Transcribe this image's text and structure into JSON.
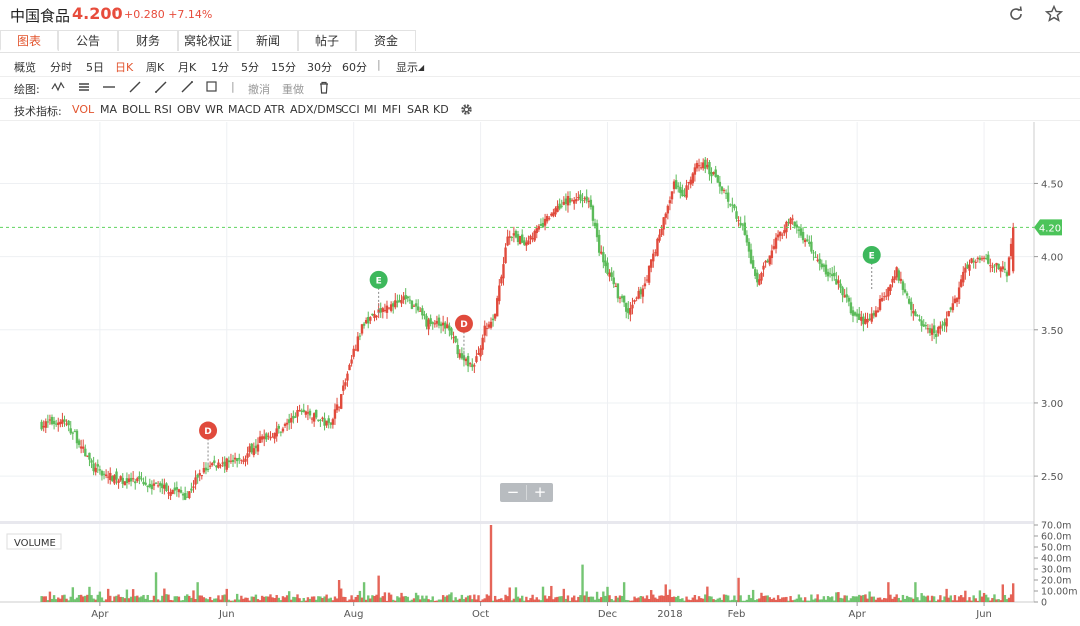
{
  "header": {
    "stock_name": "中国食品",
    "price": "4.200",
    "arrow": "↑",
    "change": "+0.280 +7.14%",
    "refresh_icon": "refresh-icon",
    "star_icon": "star-icon"
  },
  "tabs": [
    "图表",
    "公告",
    "财务",
    "窝轮权证",
    "新闻",
    "帖子",
    "资金"
  ],
  "period_bar": {
    "label": "概览",
    "items": [
      "分时",
      "5日",
      "日K",
      "周K",
      "月K",
      "1分",
      "5分",
      "15分",
      "30分",
      "60分"
    ],
    "selected": "日K",
    "display": "显示",
    "display_arrow": "◢"
  },
  "draw_bar": {
    "label": "绘图:",
    "undo": "撤消",
    "redo": "重做"
  },
  "indicator_bar": {
    "label": "技术指标:",
    "items": [
      "VOL",
      "MA",
      "BOLL",
      "RSI",
      "OBV",
      "WR",
      "MACD",
      "ATR",
      "ADX/DMS",
      "CCI",
      "MI",
      "MFI",
      "SAR",
      "KD"
    ],
    "selected": "VOL",
    "gear_icon": "gear-icon"
  },
  "zoom": {
    "minus": "−",
    "plus": "+"
  },
  "colors": {
    "up": "#e04a3c",
    "down": "#5cbb5a",
    "accent": "#e2552f"
  },
  "chart_data": {
    "type": "candlestick",
    "price_axis": {
      "ticks": [
        "2.50",
        "3.00",
        "3.50",
        "4.00",
        "4.50"
      ],
      "ylim": [
        2.2,
        4.92
      ]
    },
    "current_price": {
      "value": 4.2,
      "label": "4.20"
    },
    "x_labels": [
      {
        "label": "Apr",
        "d": 48
      },
      {
        "label": "Jun",
        "d": 109
      },
      {
        "label": "Aug",
        "d": 170
      },
      {
        "label": "Oct",
        "d": 231
      },
      {
        "label": "Dec",
        "d": 292
      },
      {
        "label": "2018",
        "d": 322
      },
      {
        "label": "Feb",
        "d": 354
      },
      {
        "label": "Apr",
        "d": 412
      },
      {
        "label": "Jun",
        "d": 473
      }
    ],
    "volume_axis": {
      "label": "VOLUME",
      "ticks": [
        "0",
        "10.00m",
        "20.0m",
        "30.0m",
        "40.0m",
        "50.0m",
        "60.0m",
        "70.0m"
      ],
      "max": 70
    },
    "markers": [
      {
        "label": "D",
        "d": 100,
        "price": 2.62,
        "color": "#e04a3c"
      },
      {
        "label": "E",
        "d": 182,
        "price": 3.65,
        "color": "#3db85c"
      },
      {
        "label": "D",
        "d": 223,
        "price": 3.35,
        "color": "#e04a3c"
      },
      {
        "label": "E",
        "d": 419,
        "price": 3.82,
        "color": "#3db85c"
      }
    ],
    "closes": [
      {
        "d": 20,
        "c": 2.85
      },
      {
        "d": 30,
        "c": 2.88
      },
      {
        "d": 36,
        "c": 2.78
      },
      {
        "d": 45,
        "c": 2.55
      },
      {
        "d": 55,
        "c": 2.48
      },
      {
        "d": 70,
        "c": 2.45
      },
      {
        "d": 85,
        "c": 2.4
      },
      {
        "d": 90,
        "c": 2.36
      },
      {
        "d": 95,
        "c": 2.5
      },
      {
        "d": 102,
        "c": 2.58
      },
      {
        "d": 115,
        "c": 2.6
      },
      {
        "d": 125,
        "c": 2.75
      },
      {
        "d": 135,
        "c": 2.82
      },
      {
        "d": 145,
        "c": 2.95
      },
      {
        "d": 158,
        "c": 2.85
      },
      {
        "d": 163,
        "c": 3.0
      },
      {
        "d": 170,
        "c": 3.35
      },
      {
        "d": 175,
        "c": 3.55
      },
      {
        "d": 182,
        "c": 3.62
      },
      {
        "d": 195,
        "c": 3.72
      },
      {
        "d": 205,
        "c": 3.55
      },
      {
        "d": 215,
        "c": 3.52
      },
      {
        "d": 222,
        "c": 3.3
      },
      {
        "d": 228,
        "c": 3.25
      },
      {
        "d": 233,
        "c": 3.5
      },
      {
        "d": 238,
        "c": 3.6
      },
      {
        "d": 244,
        "c": 4.15
      },
      {
        "d": 252,
        "c": 4.1
      },
      {
        "d": 260,
        "c": 4.2
      },
      {
        "d": 268,
        "c": 4.35
      },
      {
        "d": 275,
        "c": 4.4
      },
      {
        "d": 283,
        "c": 4.4
      },
      {
        "d": 288,
        "c": 4.05
      },
      {
        "d": 295,
        "c": 3.8
      },
      {
        "d": 302,
        "c": 3.6
      },
      {
        "d": 310,
        "c": 3.82
      },
      {
        "d": 318,
        "c": 4.2
      },
      {
        "d": 324,
        "c": 4.5
      },
      {
        "d": 328,
        "c": 4.4
      },
      {
        "d": 336,
        "c": 4.65
      },
      {
        "d": 344,
        "c": 4.55
      },
      {
        "d": 350,
        "c": 4.4
      },
      {
        "d": 357,
        "c": 4.2
      },
      {
        "d": 364,
        "c": 3.8
      },
      {
        "d": 372,
        "c": 4.1
      },
      {
        "d": 380,
        "c": 4.25
      },
      {
        "d": 388,
        "c": 4.1
      },
      {
        "d": 395,
        "c": 3.92
      },
      {
        "d": 403,
        "c": 3.82
      },
      {
        "d": 410,
        "c": 3.6
      },
      {
        "d": 416,
        "c": 3.55
      },
      {
        "d": 424,
        "c": 3.7
      },
      {
        "d": 431,
        "c": 3.9
      },
      {
        "d": 436,
        "c": 3.72
      },
      {
        "d": 443,
        "c": 3.52
      },
      {
        "d": 450,
        "c": 3.48
      },
      {
        "d": 457,
        "c": 3.62
      },
      {
        "d": 465,
        "c": 3.95
      },
      {
        "d": 471,
        "c": 4.0
      },
      {
        "d": 478,
        "c": 3.95
      },
      {
        "d": 484,
        "c": 3.88
      },
      {
        "d": 487,
        "c": 4.2
      }
    ],
    "volume_spikes": [
      {
        "d": 236,
        "v": 70
      },
      {
        "d": 280,
        "v": 34
      },
      {
        "d": 355,
        "v": 22
      },
      {
        "d": 300,
        "v": 18
      },
      {
        "d": 163,
        "v": 20
      },
      {
        "d": 175,
        "v": 18
      },
      {
        "d": 182,
        "v": 24
      },
      {
        "d": 440,
        "v": 18
      },
      {
        "d": 427,
        "v": 18
      },
      {
        "d": 482,
        "v": 16
      },
      {
        "d": 487,
        "v": 17
      },
      {
        "d": 95,
        "v": 18
      },
      {
        "d": 75,
        "v": 27
      },
      {
        "d": 320,
        "v": 16
      },
      {
        "d": 340,
        "v": 14
      }
    ]
  }
}
